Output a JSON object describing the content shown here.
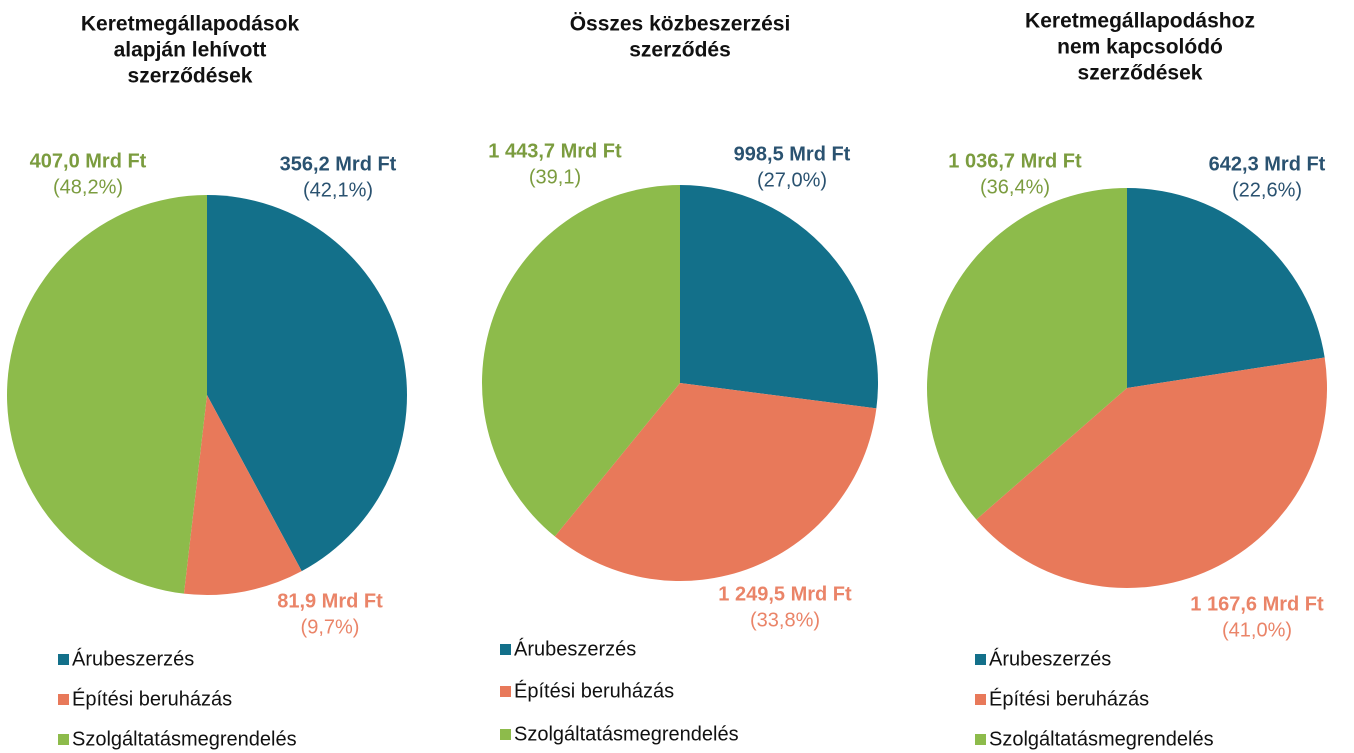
{
  "chart_data": [
    {
      "type": "pie",
      "title": [
        "Keretmegállapodások",
        "alapján lehívott",
        "szerződések"
      ],
      "categories": [
        "Árubeszerzés",
        "Építési beruházás",
        "Szolgáltatásmegrendelés"
      ],
      "colors": [
        "#13708a",
        "#e8795a",
        "#8dbb4b"
      ],
      "values": [
        356.2,
        81.9,
        407.0
      ],
      "value_labels": [
        "356,2 Mrd Ft",
        "81,9 Mrd Ft",
        "407,0 Mrd Ft"
      ],
      "percents": [
        42.1,
        9.7,
        48.2
      ],
      "percent_labels": [
        "(42,1%)",
        "(9,7%)",
        "(48,2%)"
      ]
    },
    {
      "type": "pie",
      "title": [
        "Összes közbeszerzési",
        "szerződés"
      ],
      "categories": [
        "Árubeszerzés",
        "Építési beruházás",
        "Szolgáltatásmegrendelés"
      ],
      "colors": [
        "#13708a",
        "#e8795a",
        "#8dbb4b"
      ],
      "values": [
        998.5,
        1249.5,
        1443.7
      ],
      "value_labels": [
        "998,5 Mrd Ft",
        "1 249,5 Mrd Ft",
        "1 443,7 Mrd Ft"
      ],
      "percents": [
        27.0,
        33.8,
        39.1
      ],
      "percent_labels": [
        "(27,0%)",
        "(33,8%)",
        "(39,1)"
      ]
    },
    {
      "type": "pie",
      "title": [
        "Keretmegállapodáshoz",
        "nem kapcsolódó",
        "szerződések"
      ],
      "categories": [
        "Árubeszerzés",
        "Építési beruházás",
        "Szolgáltatásmegrendelés"
      ],
      "colors": [
        "#13708a",
        "#e8795a",
        "#8dbb4b"
      ],
      "values": [
        642.3,
        1167.6,
        1036.7
      ],
      "value_labels": [
        "642,3 Mrd Ft",
        "1 167,6 Mrd Ft",
        "1 036,7 Mrd Ft"
      ],
      "percents": [
        22.6,
        41.0,
        36.4
      ],
      "percent_labels": [
        "(22,6%)",
        "(41,0%)",
        "(36,4%)"
      ]
    }
  ]
}
